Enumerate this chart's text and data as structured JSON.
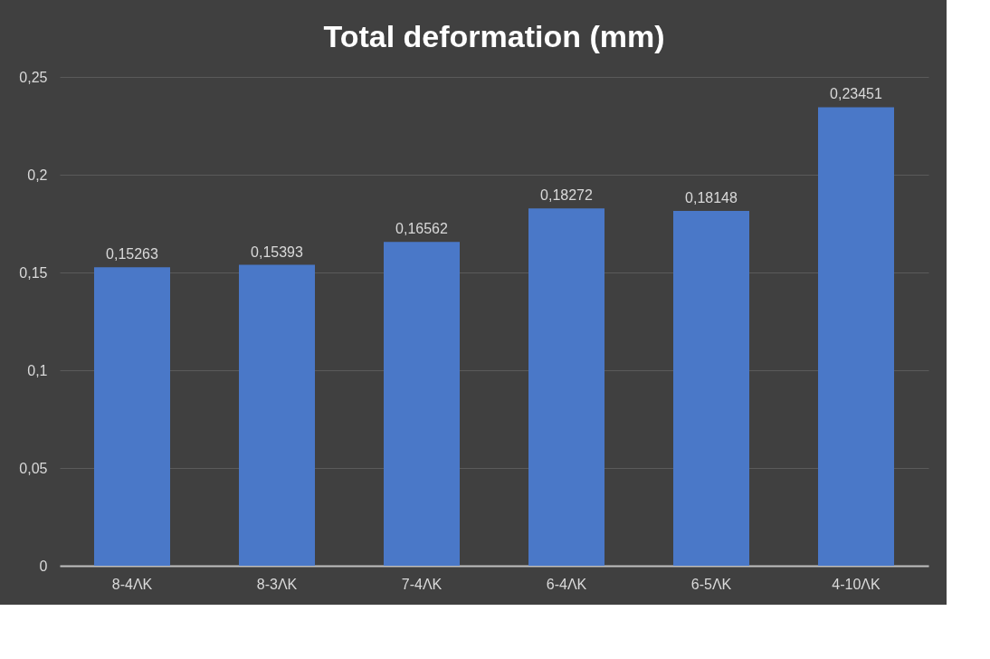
{
  "chart_data": {
    "type": "bar",
    "title": "Total deformation (mm)",
    "categories": [
      "8-4ΛΚ",
      "8-3ΛΚ",
      "7-4ΛΚ",
      "6-4ΛΚ",
      "6-5ΛΚ",
      "4-10ΛΚ"
    ],
    "values": [
      0.15263,
      0.15393,
      0.16562,
      0.18272,
      0.18148,
      0.23451
    ],
    "value_labels": [
      "0,15263",
      "0,15393",
      "0,16562",
      "0,18272",
      "0,18148",
      "0,23451"
    ],
    "color": "#4a78c8",
    "ylim": [
      0,
      0.25
    ],
    "yticks": [
      {
        "value": 0,
        "label": "0"
      },
      {
        "value": 0.05,
        "label": "0,05"
      },
      {
        "value": 0.1,
        "label": "0,1"
      },
      {
        "value": 0.15,
        "label": "0,15"
      },
      {
        "value": 0.2,
        "label": "0,2"
      },
      {
        "value": 0.25,
        "label": "0,25"
      }
    ],
    "grid": "y"
  }
}
